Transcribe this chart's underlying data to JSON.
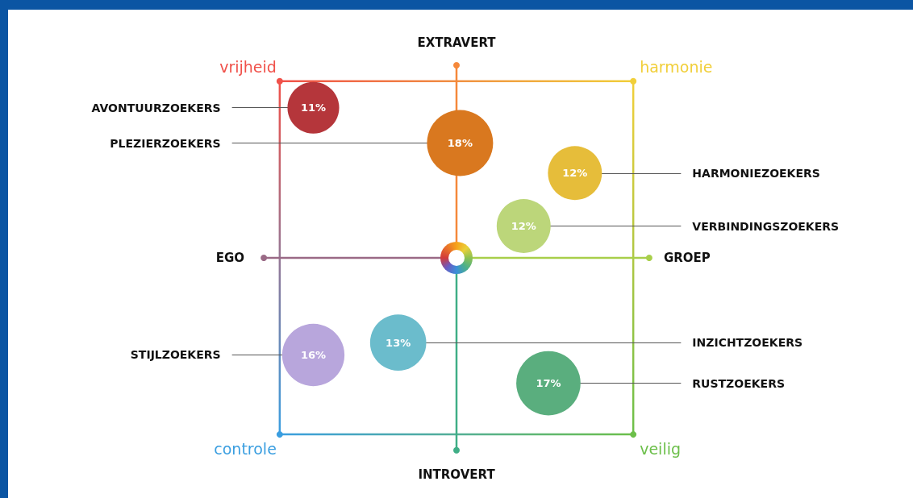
{
  "chart_data": {
    "type": "other",
    "categories": [
      "AVONTUURZOEKERS",
      "PLEZIERZOEKERS",
      "HARMONIEZOEKERS",
      "VERBINDINGSZOEKERS",
      "INZICHTZOEKERS",
      "STIJLZOEKERS",
      "RUSTZOEKERS"
    ],
    "values": [
      11,
      18,
      12,
      12,
      13,
      16,
      17
    ],
    "value_labels": [
      "11%",
      "18%",
      "12%",
      "12%",
      "13%",
      "16%",
      "17%"
    ],
    "colors": [
      "#b5363b",
      "#d9781f",
      "#e6bd3a",
      "#bcd67a",
      "#6bbccc",
      "#b8a6dc",
      "#5aae7e"
    ],
    "annotations": [
      "vrijheid",
      "harmonie",
      "controle",
      "veilig",
      "EXTRAVERT",
      "INTROVERT",
      "EGO",
      "GROEP"
    ]
  }
}
